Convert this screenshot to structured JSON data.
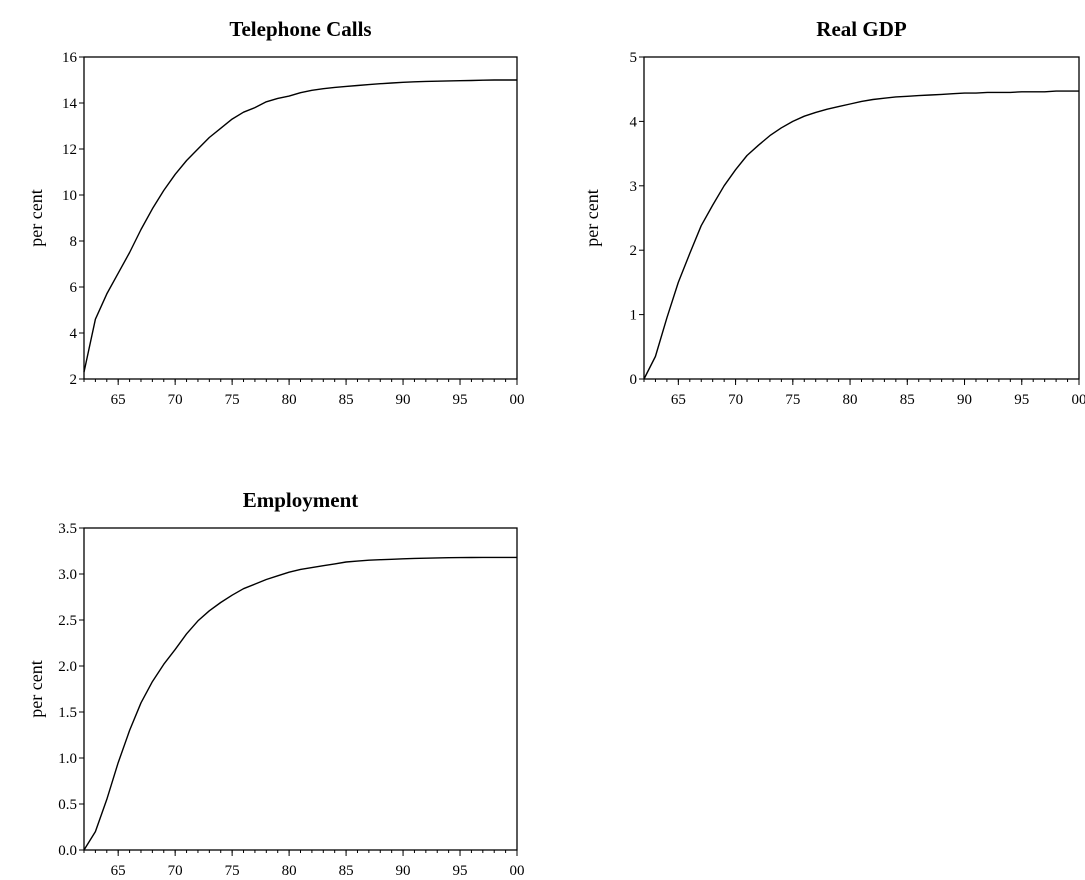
{
  "chart_data": [
    {
      "type": "line",
      "title": "Telephone Calls",
      "ylabel": "per cent",
      "xlabel": "",
      "xlim": [
        1962,
        2000
      ],
      "ylim": [
        2,
        16
      ],
      "x_ticks": [
        1965,
        1970,
        1975,
        1980,
        1985,
        1990,
        1995,
        2000
      ],
      "x_tick_labels": [
        "65",
        "70",
        "75",
        "80",
        "85",
        "90",
        "95",
        "00"
      ],
      "y_ticks": [
        2,
        4,
        6,
        8,
        10,
        12,
        14,
        16
      ],
      "y_tick_labels": [
        "2",
        "4",
        "6",
        "8",
        "10",
        "12",
        "14",
        "16"
      ],
      "grid": false,
      "series": [
        {
          "x": [
            1962,
            1963,
            1964,
            1965,
            1966,
            1967,
            1968,
            1969,
            1970,
            1971,
            1972,
            1973,
            1974,
            1975,
            1976,
            1977,
            1978,
            1979,
            1980,
            1981,
            1982,
            1983,
            1984,
            1985,
            1986,
            1987,
            1988,
            1989,
            1990,
            1991,
            1992,
            1993,
            1994,
            1995,
            1996,
            1997,
            1998,
            1999,
            2000
          ],
          "values": [
            2.3,
            4.6,
            5.7,
            6.6,
            7.5,
            8.5,
            9.4,
            10.2,
            10.9,
            11.5,
            12.0,
            12.5,
            12.9,
            13.3,
            13.6,
            13.8,
            14.05,
            14.2,
            14.3,
            14.45,
            14.55,
            14.62,
            14.68,
            14.72,
            14.76,
            14.8,
            14.84,
            14.87,
            14.9,
            14.92,
            14.94,
            14.95,
            14.96,
            14.97,
            14.98,
            14.99,
            15.0,
            15.0,
            15.0
          ]
        }
      ]
    },
    {
      "type": "line",
      "title": "Real GDP",
      "ylabel": "per cent",
      "xlabel": "",
      "xlim": [
        1962,
        2000
      ],
      "ylim": [
        0,
        5
      ],
      "x_ticks": [
        1965,
        1970,
        1975,
        1980,
        1985,
        1990,
        1995,
        2000
      ],
      "x_tick_labels": [
        "65",
        "70",
        "75",
        "80",
        "85",
        "90",
        "95",
        "00"
      ],
      "y_ticks": [
        0,
        1,
        2,
        3,
        4,
        5
      ],
      "y_tick_labels": [
        "0",
        "1",
        "2",
        "3",
        "4",
        "5"
      ],
      "grid": false,
      "series": [
        {
          "x": [
            1962,
            1963,
            1964,
            1965,
            1966,
            1967,
            1968,
            1969,
            1970,
            1971,
            1972,
            1973,
            1974,
            1975,
            1976,
            1977,
            1978,
            1979,
            1980,
            1981,
            1982,
            1983,
            1984,
            1985,
            1986,
            1987,
            1988,
            1989,
            1990,
            1991,
            1992,
            1993,
            1994,
            1995,
            1996,
            1997,
            1998,
            1999,
            2000
          ],
          "values": [
            0.0,
            0.35,
            0.95,
            1.5,
            1.95,
            2.38,
            2.7,
            3.0,
            3.25,
            3.47,
            3.63,
            3.78,
            3.9,
            4.0,
            4.08,
            4.14,
            4.19,
            4.23,
            4.27,
            4.31,
            4.34,
            4.36,
            4.38,
            4.39,
            4.4,
            4.41,
            4.42,
            4.43,
            4.44,
            4.44,
            4.45,
            4.45,
            4.45,
            4.46,
            4.46,
            4.46,
            4.47,
            4.47,
            4.47
          ]
        }
      ]
    },
    {
      "type": "line",
      "title": "Employment",
      "ylabel": "per cent",
      "xlabel": "",
      "xlim": [
        1962,
        2000
      ],
      "ylim": [
        0,
        3.5
      ],
      "x_ticks": [
        1965,
        1970,
        1975,
        1980,
        1985,
        1990,
        1995,
        2000
      ],
      "x_tick_labels": [
        "65",
        "70",
        "75",
        "80",
        "85",
        "90",
        "95",
        "00"
      ],
      "y_ticks": [
        0,
        0.5,
        1,
        1.5,
        2,
        2.5,
        3,
        3.5
      ],
      "y_tick_labels": [
        "0.0",
        "0.5",
        "1.0",
        "1.5",
        "2.0",
        "2.5",
        "3.0",
        "3.5"
      ],
      "grid": false,
      "series": [
        {
          "x": [
            1962,
            1963,
            1964,
            1965,
            1966,
            1967,
            1968,
            1969,
            1970,
            1971,
            1972,
            1973,
            1974,
            1975,
            1976,
            1977,
            1978,
            1979,
            1980,
            1981,
            1982,
            1983,
            1984,
            1985,
            1986,
            1987,
            1988,
            1989,
            1990,
            1991,
            1992,
            1993,
            1994,
            1995,
            1996,
            1997,
            1998,
            1999,
            2000
          ],
          "values": [
            0.0,
            0.2,
            0.55,
            0.95,
            1.3,
            1.6,
            1.83,
            2.02,
            2.18,
            2.35,
            2.49,
            2.6,
            2.69,
            2.77,
            2.84,
            2.89,
            2.94,
            2.98,
            3.02,
            3.05,
            3.07,
            3.09,
            3.11,
            3.13,
            3.14,
            3.15,
            3.155,
            3.16,
            3.165,
            3.17,
            3.172,
            3.175,
            3.177,
            3.178,
            3.179,
            3.18,
            3.18,
            3.18,
            3.18
          ]
        }
      ]
    }
  ]
}
